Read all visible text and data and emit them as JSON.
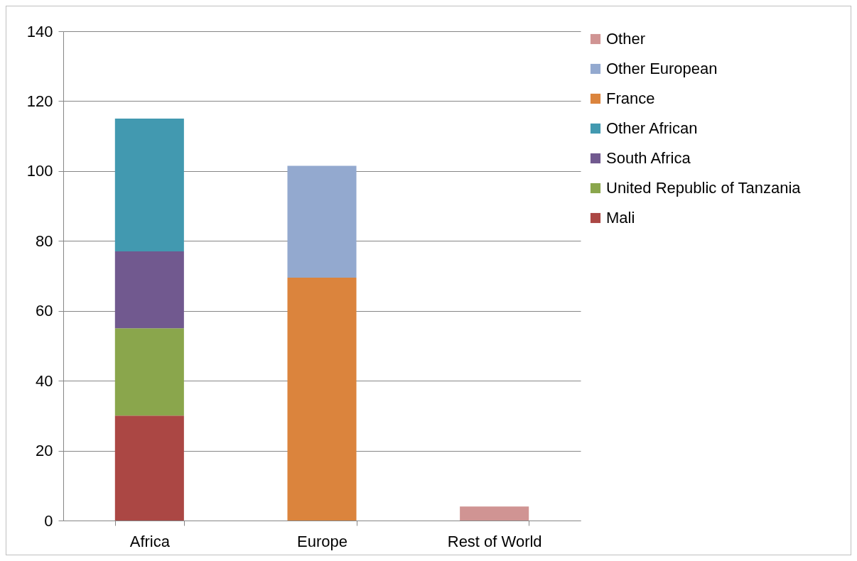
{
  "chart_data": {
    "type": "bar",
    "stacked": true,
    "categories": [
      "Africa",
      "Europe",
      "Rest of World"
    ],
    "series": [
      {
        "name": "Mali",
        "color": "#ab4744",
        "values": [
          30,
          null,
          null
        ]
      },
      {
        "name": "United Republic of Tanzania",
        "color": "#8aa64c",
        "values": [
          25,
          null,
          null
        ]
      },
      {
        "name": "South Africa",
        "color": "#71598f",
        "values": [
          22,
          null,
          null
        ]
      },
      {
        "name": "Other African",
        "color": "#4299b0",
        "values": [
          38,
          null,
          null
        ]
      },
      {
        "name": "France",
        "color": "#db843d",
        "values": [
          null,
          69.5,
          null
        ]
      },
      {
        "name": "Other European",
        "color": "#93a9cf",
        "values": [
          null,
          32,
          null
        ]
      },
      {
        "name": "Other",
        "color": "#d09493",
        "values": [
          null,
          null,
          4
        ]
      }
    ],
    "ylim": [
      0,
      140
    ],
    "yticks": [
      0,
      20,
      40,
      60,
      80,
      100,
      120,
      140
    ],
    "grid": "y",
    "legend": "right"
  }
}
